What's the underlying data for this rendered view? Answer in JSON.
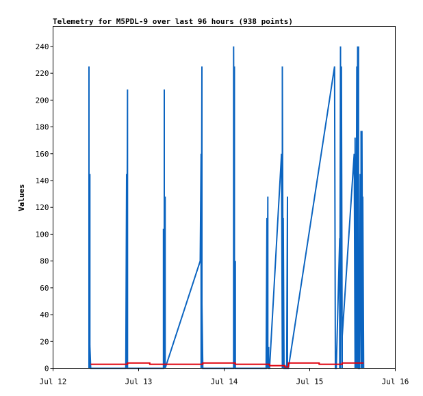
{
  "chart_data": {
    "type": "line",
    "title": "Telemetry for M5PDL-9 over last 96 hours (938 points)",
    "xlabel": "",
    "ylabel": "Values",
    "xlim": [
      0,
      4
    ],
    "ylim": [
      0,
      255
    ],
    "x_ticks": [
      {
        "value": 0,
        "label": "Jul 12"
      },
      {
        "value": 1,
        "label": "Jul 13"
      },
      {
        "value": 2,
        "label": "Jul 14"
      },
      {
        "value": 3,
        "label": "Jul 15"
      },
      {
        "value": 4,
        "label": "Jul 16"
      }
    ],
    "y_ticks": [
      0,
      20,
      40,
      60,
      80,
      100,
      120,
      140,
      160,
      180,
      200,
      220,
      240
    ],
    "grid": false,
    "legend": "none",
    "x_units": "days since Jul 12 00:00",
    "series": [
      {
        "color": "#0b64c0",
        "x": [
          0.42,
          0.42,
          0.42,
          0.43,
          0.43,
          0.43,
          0.44,
          0.44,
          0.85,
          0.86,
          0.86,
          0.87,
          0.87,
          0.87,
          1.29,
          1.29,
          1.3,
          1.3,
          1.3,
          1.31,
          1.31,
          1.31,
          1.72,
          1.73,
          1.73,
          1.74,
          1.74,
          1.74,
          1.75,
          1.75,
          2.11,
          2.11,
          2.12,
          2.12,
          2.12,
          2.13,
          2.13,
          2.13,
          2.49,
          2.5,
          2.5,
          2.51,
          2.51,
          2.52,
          2.52,
          2.53,
          2.53,
          2.67,
          2.68,
          2.68,
          2.69,
          2.69,
          2.7,
          2.7,
          2.71,
          2.71,
          2.73,
          2.74,
          2.74,
          2.75,
          2.75,
          3.29,
          3.3,
          3.3,
          3.31,
          3.31,
          3.35,
          3.35,
          3.36,
          3.36,
          3.37,
          3.38,
          3.38,
          3.52,
          3.53,
          3.53,
          3.54,
          3.55,
          3.55,
          3.56,
          3.56,
          3.57,
          3.57,
          3.58,
          3.58,
          3.59,
          3.6,
          3.6,
          3.61,
          3.61,
          3.62,
          3.62,
          3.63,
          3.63
        ],
        "y": [
          0,
          225,
          0,
          145,
          0,
          17,
          0,
          0,
          0,
          145,
          0,
          208,
          0,
          0,
          0,
          104,
          0,
          208,
          0,
          128,
          0,
          0,
          80,
          160,
          0,
          225,
          0,
          48,
          0,
          0,
          0,
          240,
          0,
          225,
          0,
          80,
          0,
          0,
          0,
          112,
          0,
          128,
          0,
          16,
          0,
          0,
          0,
          160,
          0,
          225,
          0,
          112,
          0,
          0,
          0,
          0,
          0,
          128,
          0,
          0,
          0,
          225,
          0,
          0,
          0,
          0,
          97,
          0,
          240,
          0,
          225,
          0,
          24,
          160,
          0,
          172,
          0,
          225,
          0,
          240,
          0,
          240,
          0,
          0,
          0,
          145,
          0,
          177,
          0,
          177,
          0,
          128,
          0,
          0
        ]
      },
      {
        "color": "#e0000c",
        "x": [
          0.44,
          0.87,
          0.87,
          0.93,
          0.93,
          1.13,
          1.13,
          1.31,
          1.31,
          1.58,
          1.58,
          1.75,
          1.75,
          2.13,
          2.13,
          2.53,
          2.53,
          2.71,
          2.71,
          2.75,
          2.75,
          3.11,
          3.11,
          3.38,
          3.38,
          3.63
        ],
        "y": [
          3,
          3,
          4,
          4,
          4,
          4,
          3,
          3,
          3,
          3,
          3,
          3,
          4,
          4,
          3,
          3,
          2,
          2,
          1,
          1,
          4,
          4,
          3,
          3,
          4,
          4
        ]
      },
      {
        "color": "#000000",
        "x": [
          0,
          4
        ],
        "y": [
          0,
          0
        ]
      }
    ]
  }
}
